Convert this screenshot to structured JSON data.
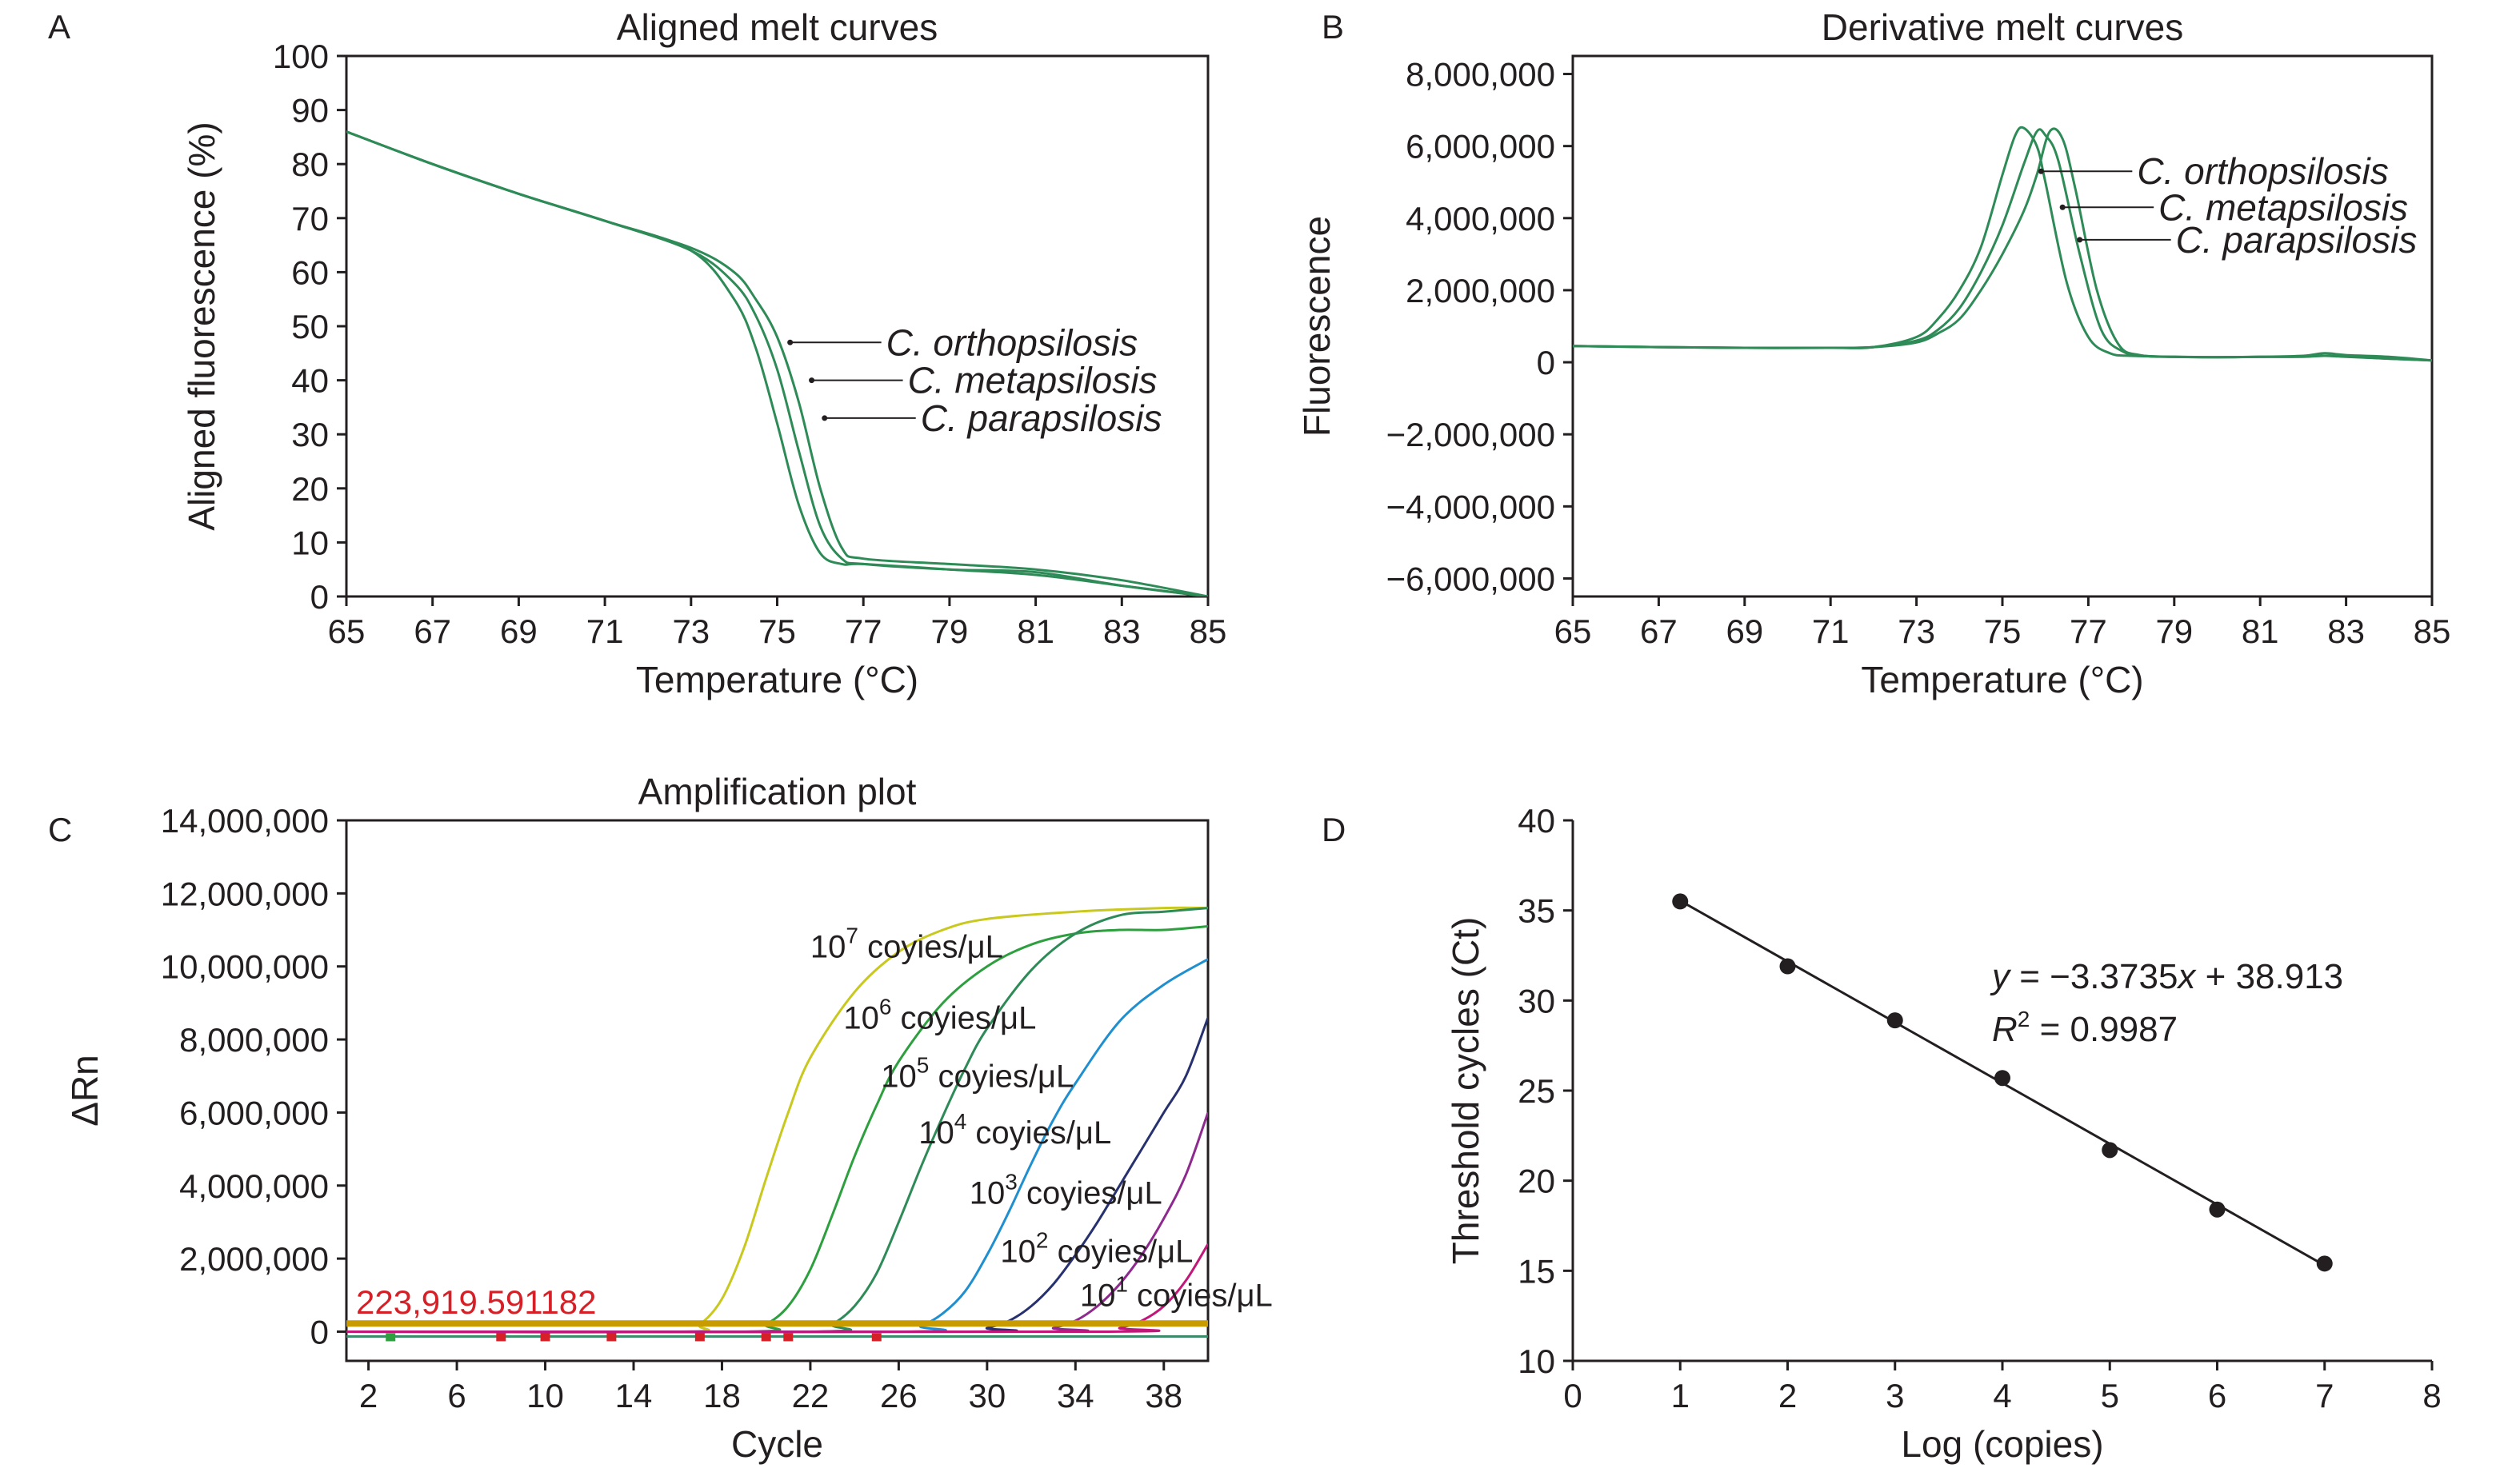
{
  "chart_data": [
    {
      "id": "A",
      "panel_label": "A",
      "type": "line",
      "title": "Aligned melt curves",
      "xlabel": "Temperature (°C)",
      "ylabel": "Aligned fluorescence (%)",
      "xlim": [
        65,
        85
      ],
      "ylim": [
        0,
        100
      ],
      "xticks": [
        "65",
        "67",
        "69",
        "71",
        "73",
        "75",
        "77",
        "79",
        "81",
        "83",
        "85"
      ],
      "yticks": [
        "0",
        "10",
        "20",
        "30",
        "40",
        "50",
        "60",
        "70",
        "80",
        "90",
        "100"
      ],
      "line_color": "#2e8b57",
      "series": [
        {
          "name": "C. orthopsilosis",
          "x": [
            65,
            67,
            69,
            71,
            73,
            74,
            74.5,
            75,
            75.5,
            76,
            76.5,
            77,
            79,
            81,
            83,
            85
          ],
          "y": [
            86,
            80,
            74.5,
            69.5,
            64,
            55,
            46,
            32,
            17,
            8,
            6,
            6,
            5,
            4,
            2,
            0
          ]
        },
        {
          "name": "C. metapsilosis",
          "x": [
            65,
            67,
            69,
            71,
            73,
            74,
            74.5,
            75,
            75.5,
            76,
            76.5,
            77,
            79,
            81,
            83,
            85
          ],
          "y": [
            86,
            80,
            74.5,
            69.5,
            64,
            58,
            52,
            42,
            27,
            13,
            7,
            6,
            5,
            4.5,
            2,
            0
          ]
        },
        {
          "name": "C. parapsilosis",
          "x": [
            65,
            67,
            69,
            71,
            73,
            74,
            74.5,
            75,
            75.5,
            76,
            76.5,
            77,
            79,
            81,
            83,
            85
          ],
          "y": [
            86,
            80,
            74.5,
            69.5,
            64.5,
            60,
            55,
            48,
            36,
            20,
            9,
            7,
            6,
            5,
            3,
            0
          ]
        }
      ],
      "annotations": [
        {
          "label": "C. orthopsilosis",
          "x": 75.3,
          "y": 47
        },
        {
          "label": "C. metapsilosis",
          "x": 75.8,
          "y": 40
        },
        {
          "label": "C. parapsilosis",
          "x": 76.1,
          "y": 33
        }
      ]
    },
    {
      "id": "B",
      "panel_label": "B",
      "type": "line",
      "title": "Derivative melt curves",
      "xlabel": "Temperature (°C)",
      "ylabel": "Fluorescence",
      "xlim": [
        65,
        85
      ],
      "ylim": [
        -6500000,
        8500000
      ],
      "xticks": [
        "65",
        "67",
        "69",
        "71",
        "73",
        "75",
        "77",
        "79",
        "81",
        "83",
        "85"
      ],
      "ytick_values": [
        -6000000,
        -4000000,
        -2000000,
        0,
        2000000,
        4000000,
        6000000,
        8000000
      ],
      "yticks": [
        "−6,000,000",
        "−4,000,000",
        "−2,000,000",
        "0",
        "2,000,000",
        "4,000,000",
        "6,000,000",
        "8,000,000"
      ],
      "line_color": "#2e8b57",
      "series": [
        {
          "name": "C. orthopsilosis",
          "x": [
            65,
            67,
            69,
            71,
            72,
            73,
            73.5,
            74,
            74.5,
            75,
            75.3,
            75.5,
            75.8,
            76,
            76.5,
            77,
            77.5,
            78,
            79,
            80,
            81,
            82,
            82.5,
            83,
            84,
            85
          ],
          "y": [
            450000,
            420000,
            400000,
            400000,
            420000,
            700000,
            1200000,
            2000000,
            3200000,
            5200000,
            6300000,
            6500000,
            6000000,
            5000000,
            2200000,
            700000,
            250000,
            180000,
            150000,
            140000,
            150000,
            150000,
            180000,
            160000,
            100000,
            50000
          ]
        },
        {
          "name": "C. metapsilosis",
          "x": [
            65,
            67,
            69,
            71,
            72,
            73,
            73.5,
            74,
            74.5,
            75,
            75.5,
            75.8,
            76,
            76.3,
            76.8,
            77.3,
            77.8,
            78.3,
            79,
            80,
            81,
            82,
            82.5,
            83,
            84,
            85
          ],
          "y": [
            450000,
            420000,
            400000,
            400000,
            420000,
            600000,
            900000,
            1500000,
            2500000,
            3800000,
            5500000,
            6400000,
            6300000,
            5600000,
            3000000,
            900000,
            300000,
            180000,
            150000,
            140000,
            150000,
            180000,
            250000,
            200000,
            150000,
            50000
          ]
        },
        {
          "name": "C. parapsilosis",
          "x": [
            65,
            67,
            69,
            71,
            72,
            73,
            73.5,
            74,
            74.5,
            75,
            75.5,
            75.8,
            76.1,
            76.4,
            76.7,
            77.2,
            77.7,
            78.2,
            79,
            80,
            81,
            82,
            82.5,
            83,
            84,
            85
          ],
          "y": [
            450000,
            420000,
            400000,
            400000,
            420000,
            550000,
            800000,
            1200000,
            2000000,
            3000000,
            4200000,
            5200000,
            6400000,
            6200000,
            4800000,
            2000000,
            500000,
            200000,
            150000,
            140000,
            150000,
            160000,
            180000,
            150000,
            100000,
            50000
          ]
        }
      ],
      "annotations": [
        {
          "label": "C. orthopsilosis",
          "x": 75.9,
          "y": 5300000
        },
        {
          "label": "C. metapsilosis",
          "x": 76.4,
          "y": 4300000
        },
        {
          "label": "C. parapsilosis",
          "x": 76.8,
          "y": 3400000
        }
      ]
    },
    {
      "id": "C",
      "panel_label": "C",
      "type": "line",
      "title": "Amplification plot",
      "xlabel": "Cycle",
      "ylabel": "ΔRn",
      "xlim": [
        1,
        40
      ],
      "ylim": [
        -800000,
        14000000
      ],
      "xticks": [
        "2",
        "6",
        "10",
        "14",
        "18",
        "22",
        "26",
        "30",
        "34",
        "38"
      ],
      "ytick_values": [
        0,
        2000000,
        4000000,
        6000000,
        8000000,
        10000000,
        12000000,
        14000000
      ],
      "yticks": [
        "0",
        "2,000,000",
        "4,000,000",
        "6,000,000",
        "8,000,000",
        "10,000,000",
        "12,000,000",
        "14,000,000"
      ],
      "threshold": {
        "value": 223919.591182,
        "label": "223,919.591182",
        "color": "#d62027",
        "line_color": "#c89c00"
      },
      "series": [
        {
          "name": "10^7",
          "color": "#c8c81e",
          "x": [
            1,
            16,
            17,
            18,
            19,
            20,
            21,
            22,
            24,
            26,
            28,
            30,
            34,
            38,
            40
          ],
          "y": [
            0,
            0,
            200000,
            900000,
            2300000,
            4200000,
            6000000,
            7500000,
            9300000,
            10400000,
            11000000,
            11300000,
            11500000,
            11600000,
            11600000
          ]
        },
        {
          "name": "10^6",
          "color": "#2e9f3f",
          "x": [
            1,
            19,
            20,
            21,
            22,
            23,
            24,
            25,
            26,
            28,
            30,
            32,
            34,
            36,
            38,
            40
          ],
          "y": [
            0,
            0,
            200000,
            700000,
            1700000,
            3200000,
            4800000,
            6200000,
            7400000,
            9000000,
            10000000,
            10600000,
            10900000,
            11000000,
            11000000,
            11100000
          ]
        },
        {
          "name": "10^5",
          "color": "#2e8b57",
          "x": [
            1,
            22,
            23,
            24,
            25,
            26,
            27,
            28,
            29,
            30,
            32,
            34,
            36,
            38,
            40
          ],
          "y": [
            0,
            0,
            200000,
            700000,
            1600000,
            3000000,
            4500000,
            5900000,
            7200000,
            8300000,
            9900000,
            10900000,
            11400000,
            11500000,
            11600000
          ]
        },
        {
          "name": "10^4",
          "color": "#1f8fcf",
          "x": [
            1,
            26,
            27,
            28,
            29,
            30,
            31,
            32,
            33,
            34,
            36,
            38,
            40
          ],
          "y": [
            0,
            0,
            150000,
            500000,
            1100000,
            2100000,
            3300000,
            4600000,
            5800000,
            6800000,
            8500000,
            9500000,
            10200000
          ]
        },
        {
          "name": "10^3",
          "color": "#27316f",
          "x": [
            1,
            29,
            30,
            31,
            32,
            33,
            34,
            35,
            36,
            37,
            38,
            39,
            40
          ],
          "y": [
            0,
            0,
            100000,
            300000,
            700000,
            1300000,
            2100000,
            3000000,
            4000000,
            5000000,
            6000000,
            7000000,
            8600000
          ]
        },
        {
          "name": "10^2",
          "color": "#8e2a8e",
          "x": [
            1,
            32,
            33,
            34,
            35,
            36,
            37,
            38,
            39,
            40
          ],
          "y": [
            0,
            0,
            100000,
            300000,
            700000,
            1300000,
            2100000,
            3100000,
            4300000,
            6000000
          ]
        },
        {
          "name": "10^1",
          "color": "#c2177a",
          "x": [
            1,
            35,
            36,
            37,
            38,
            39,
            40
          ],
          "y": [
            0,
            0,
            100000,
            300000,
            700000,
            1400000,
            2400000
          ]
        }
      ],
      "baseline_markers": [
        3,
        8,
        10,
        13,
        17,
        20,
        21,
        25
      ],
      "annotations": [
        {
          "base": "10",
          "exp": "7",
          "text": " coyies/μL",
          "x": 22.0,
          "y": 10250000
        },
        {
          "base": "10",
          "exp": "6",
          "text": " coyies/μL",
          "x": 23.5,
          "y": 8300000
        },
        {
          "base": "10",
          "exp": "5",
          "text": " coyies/μL",
          "x": 25.2,
          "y": 6700000
        },
        {
          "base": "10",
          "exp": "4",
          "text": " coyies/μL",
          "x": 26.9,
          "y": 5150000
        },
        {
          "base": "10",
          "exp": "3",
          "text": " coyies/μL",
          "x": 29.2,
          "y": 3500000
        },
        {
          "base": "10",
          "exp": "2",
          "text": " coyies/μL",
          "x": 30.6,
          "y": 1900000
        },
        {
          "base": "10",
          "exp": "1",
          "text": " coyies/μL",
          "x": 34.2,
          "y": 700000
        }
      ]
    },
    {
      "id": "D",
      "panel_label": "D",
      "type": "scatter",
      "title": "",
      "xlabel": "Log (copies)",
      "ylabel": "Threshold cycles (Ct)",
      "xlim": [
        0,
        8
      ],
      "ylim": [
        10,
        40
      ],
      "xticks": [
        "0",
        "1",
        "2",
        "3",
        "4",
        "5",
        "6",
        "7",
        "8"
      ],
      "yticks": [
        "10",
        "15",
        "20",
        "25",
        "30",
        "35",
        "40"
      ],
      "points": [
        {
          "x": 1,
          "y": 35.5
        },
        {
          "x": 2,
          "y": 31.9
        },
        {
          "x": 3,
          "y": 28.9
        },
        {
          "x": 4,
          "y": 25.7
        },
        {
          "x": 5,
          "y": 21.7
        },
        {
          "x": 6,
          "y": 18.4
        },
        {
          "x": 7,
          "y": 15.4
        }
      ],
      "fit": {
        "slope": -3.3735,
        "intercept": 38.913
      },
      "equation_parts": {
        "y": "y",
        "eq1": " = −3.3735",
        "x": "x",
        "eq2": " + 38.913"
      },
      "r2_parts": {
        "R": "R",
        "sup": "2",
        "rest": " = 0.9987"
      }
    }
  ]
}
